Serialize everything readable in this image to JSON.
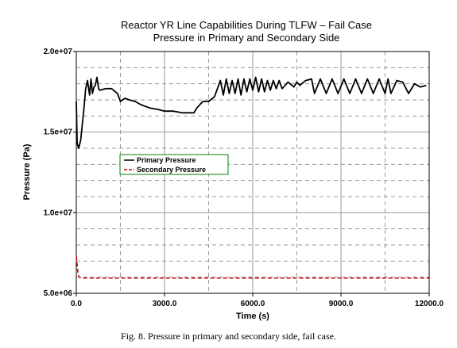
{
  "chart_data": {
    "type": "line",
    "title": "Reactor YR Line Capabilities During TLFW – Fail Case",
    "subtitle": "Pressure in Primary and Secondary Side",
    "xlabel": "Time (s)",
    "ylabel": "Pressure (Pa)",
    "xlim": [
      0,
      12000
    ],
    "ylim": [
      5000000,
      20000000
    ],
    "x_ticks": [
      0,
      3000,
      6000,
      9000,
      12000
    ],
    "x_tick_labels": [
      "0.0",
      "3000.0",
      "6000.0",
      "9000.0",
      "12000.0"
    ],
    "y_ticks": [
      5000000,
      10000000,
      15000000,
      20000000
    ],
    "y_tick_labels": [
      "5.0e+06",
      "1.0e+07",
      "1.5e+07",
      "2.0e+07"
    ],
    "grid": "major solid, minor dashed",
    "legend_position": "middle-left",
    "series": [
      {
        "name": "Primary Pressure",
        "color": "#000000",
        "style": "solid",
        "x": [
          0,
          30,
          80,
          150,
          250,
          320,
          380,
          450,
          500,
          550,
          600,
          650,
          700,
          760,
          800,
          1000,
          1200,
          1400,
          1500,
          1650,
          1800,
          2000,
          2200,
          2500,
          2800,
          3000,
          3300,
          3600,
          3900,
          4000,
          4100,
          4300,
          4500,
          4700,
          4900,
          5000,
          5100,
          5200,
          5300,
          5400,
          5500,
          5600,
          5700,
          5800,
          5900,
          6000,
          6100,
          6200,
          6300,
          6400,
          6500,
          6600,
          6700,
          6800,
          6900,
          7000,
          7200,
          7400,
          7500,
          7600,
          7800,
          8000,
          8100,
          8300,
          8500,
          8700,
          8900,
          9100,
          9300,
          9500,
          9700,
          9900,
          10100,
          10300,
          10500,
          10600,
          10700,
          10900,
          11100,
          11300,
          11500,
          11700,
          11900
        ],
        "y": [
          16900000,
          14300000,
          14000000,
          14500000,
          16300000,
          17700000,
          18200000,
          17300000,
          18300000,
          17400000,
          17800000,
          17900000,
          18400000,
          17700000,
          17600000,
          17700000,
          17700000,
          17400000,
          16900000,
          17100000,
          17000000,
          16900000,
          16700000,
          16500000,
          16400000,
          16300000,
          16300000,
          16200000,
          16200000,
          16200000,
          16500000,
          16900000,
          16900000,
          17200000,
          18200000,
          17300000,
          18300000,
          17400000,
          18200000,
          17400000,
          18300000,
          17300000,
          18300000,
          17500000,
          18300000,
          17600000,
          18400000,
          17500000,
          18300000,
          17500000,
          18200000,
          17600000,
          18200000,
          17700000,
          18200000,
          17700000,
          18100000,
          17800000,
          18100000,
          17900000,
          18200000,
          18300000,
          17400000,
          18300000,
          17400000,
          18300000,
          17400000,
          18300000,
          17400000,
          18300000,
          17400000,
          18300000,
          17400000,
          18300000,
          17400000,
          18300000,
          17400000,
          18200000,
          18100000,
          17400000,
          18000000,
          17800000,
          17900000
        ]
      },
      {
        "name": "Secondary Pressure",
        "color": "#cc0000",
        "style": "dashed",
        "x": [
          0,
          30,
          60,
          100,
          200,
          500,
          1000,
          3000,
          6000,
          9000,
          12000
        ],
        "y": [
          7300000,
          6800000,
          6200000,
          6000000,
          5950000,
          5950000,
          5950000,
          5950000,
          5950000,
          5950000,
          5950000
        ]
      }
    ]
  },
  "caption": "Fig. 8.  Pressure in primary and secondary side, fail case."
}
